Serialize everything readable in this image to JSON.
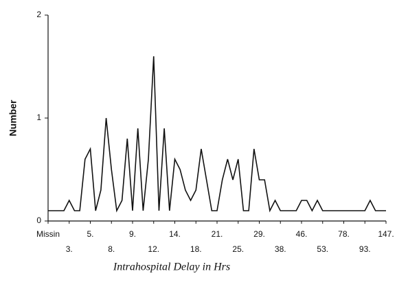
{
  "chart_data": {
    "type": "line",
    "x_label": "Intrahospital Delay in Hrs",
    "y_label": "Number",
    "categories": [
      "Missin",
      null,
      null,
      null,
      "3.",
      null,
      null,
      null,
      "5.",
      null,
      null,
      null,
      "8.",
      null,
      null,
      null,
      "9.",
      null,
      null,
      null,
      "12.",
      null,
      null,
      null,
      "14.",
      null,
      null,
      null,
      "18.",
      null,
      null,
      null,
      "21.",
      null,
      null,
      null,
      "25.",
      null,
      null,
      null,
      "29.",
      null,
      null,
      null,
      "38.",
      null,
      null,
      null,
      "46.",
      null,
      null,
      null,
      "53.",
      null,
      null,
      null,
      "78.",
      null,
      null,
      null,
      "93.",
      null,
      null,
      null,
      "147."
    ],
    "series": [
      {
        "name": "Number",
        "color": "#111111",
        "values": [
          0.1,
          0.1,
          0.1,
          0.1,
          0.2,
          0.1,
          0.1,
          0.6,
          0.7,
          0.1,
          0.3,
          1.0,
          0.5,
          0.1,
          0.2,
          0.8,
          0.1,
          0.9,
          0.1,
          0.6,
          1.6,
          0.1,
          0.9,
          0.1,
          0.6,
          0.5,
          0.3,
          0.2,
          0.3,
          0.7,
          0.4,
          0.1,
          0.1,
          0.4,
          0.6,
          0.4,
          0.6,
          0.1,
          0.1,
          0.7,
          0.4,
          0.4,
          0.1,
          0.2,
          0.1,
          0.1,
          0.1,
          0.1,
          0.2,
          0.2,
          0.1,
          0.2,
          0.1,
          0.1,
          0.1,
          0.1,
          0.1,
          0.1,
          0.1,
          0.1,
          0.1,
          0.2,
          0.1,
          0.1,
          0.1
        ]
      }
    ],
    "ylim": [
      0,
      2
    ],
    "yticks": [
      0,
      1,
      2
    ]
  }
}
